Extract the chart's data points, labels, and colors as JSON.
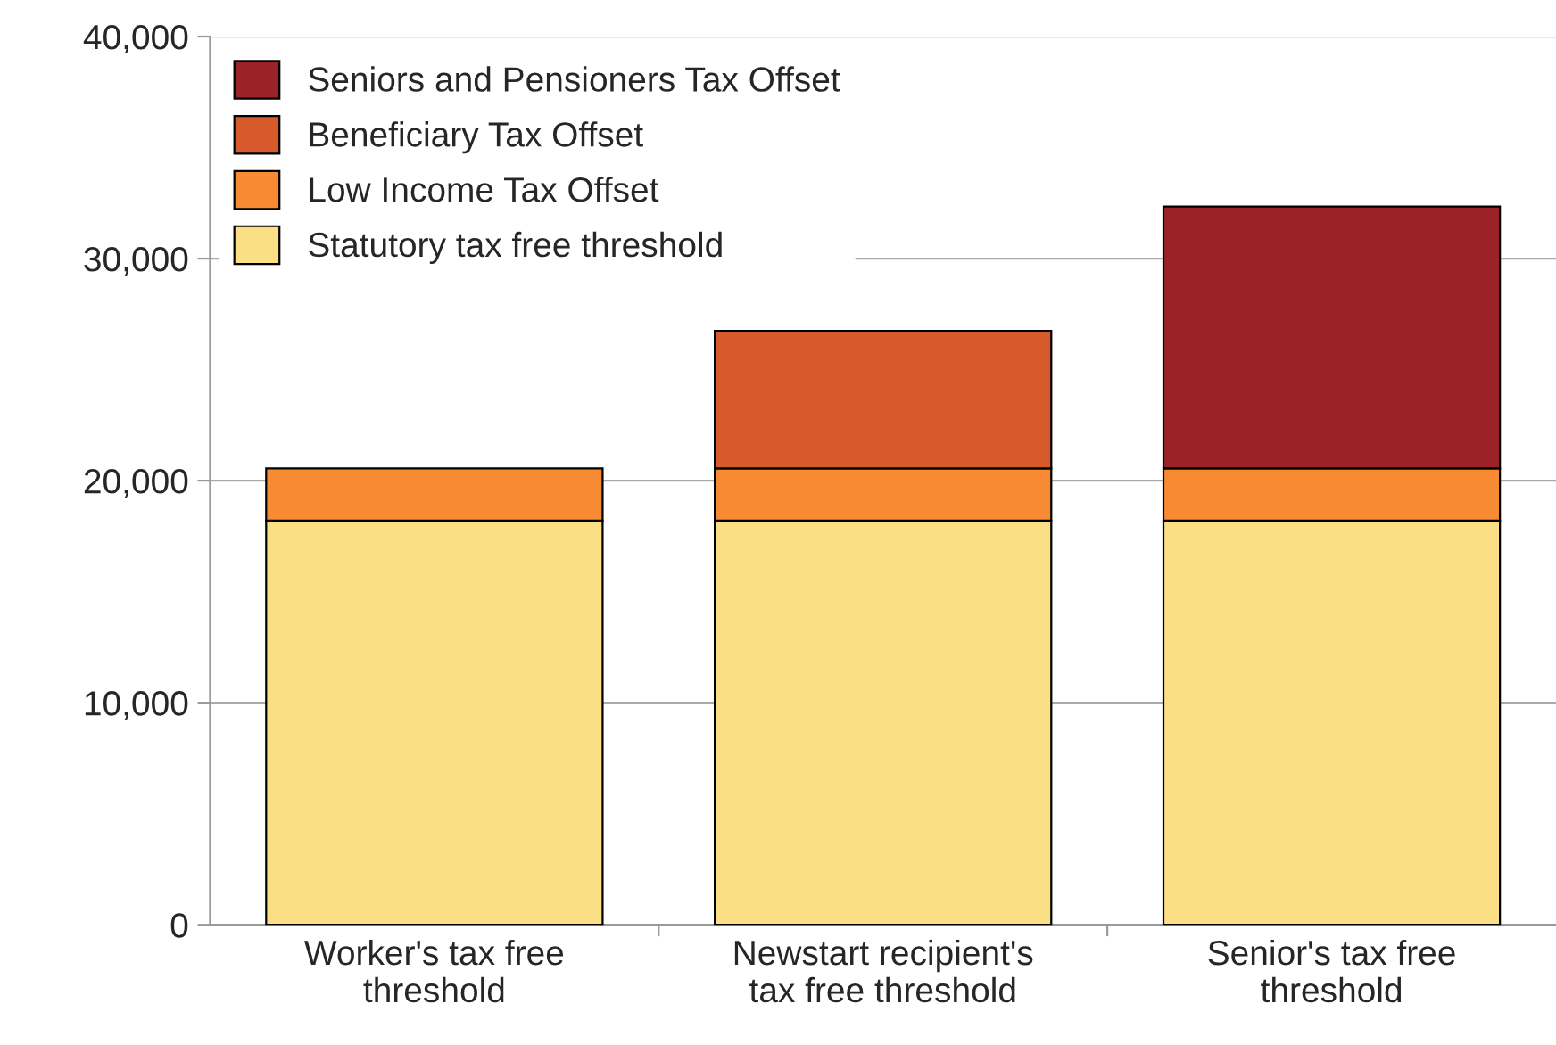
{
  "chart_data": {
    "type": "bar",
    "stacked": true,
    "categories": [
      "Worker's tax free\nthreshold",
      "Newstart recipient's\ntax free threshold",
      "Senior's tax free\nthreshold"
    ],
    "series": [
      {
        "name": "Statutory tax free threshold",
        "color": "#fbdf84",
        "values": [
          18200,
          18200,
          18200
        ]
      },
      {
        "name": "Low Income Tax Offset",
        "color": "#f68b33",
        "values": [
          2350,
          2350,
          2350
        ]
      },
      {
        "name": "Beneficiary Tax Offset",
        "color": "#d65a2c",
        "values": [
          null,
          6200,
          null
        ]
      },
      {
        "name": "Seniors and Pensioners Tax Offset",
        "color": "#9b2226",
        "values": [
          null,
          null,
          11800
        ]
      }
    ],
    "ylim": [
      0,
      40000
    ],
    "yticks": [
      {
        "value": 0,
        "label": "0"
      },
      {
        "value": 10000,
        "label": "10,000"
      },
      {
        "value": 20000,
        "label": "20,000"
      },
      {
        "value": 30000,
        "label": "30,000"
      },
      {
        "value": 40000,
        "label": "40,000"
      }
    ],
    "grid": "y",
    "legend": "top left"
  }
}
